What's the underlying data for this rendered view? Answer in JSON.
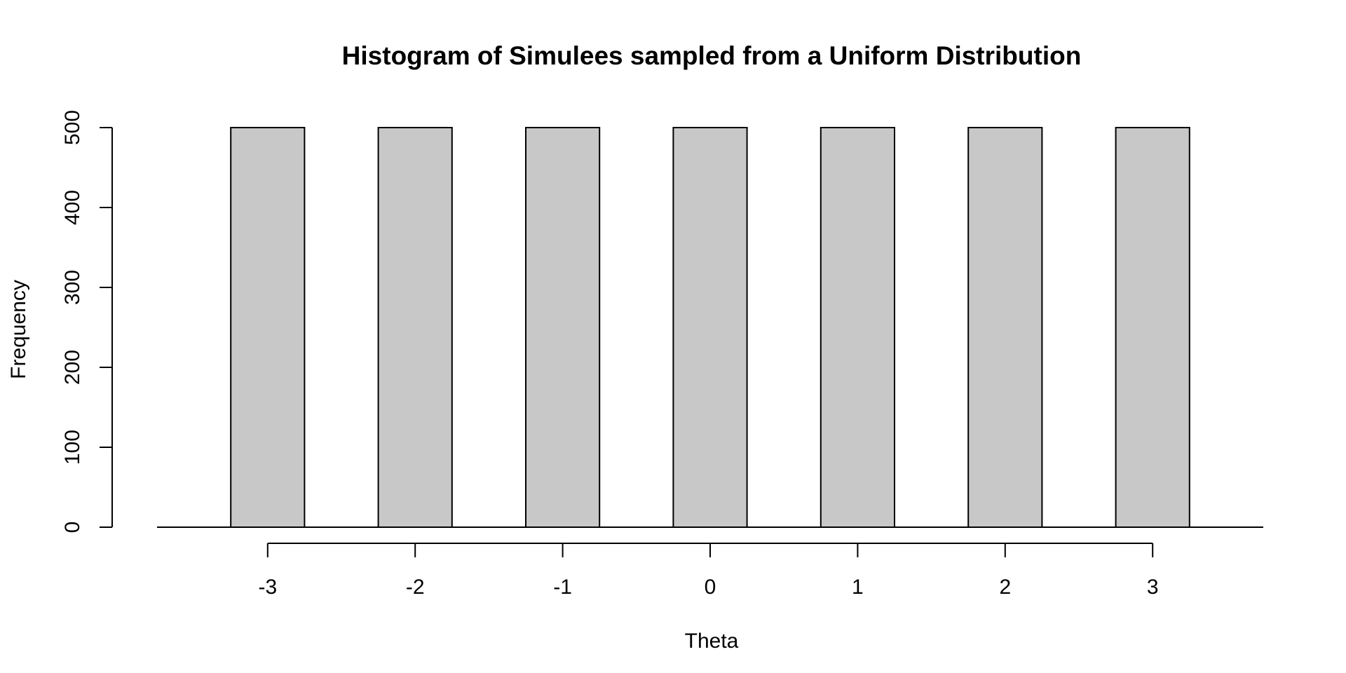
{
  "chart_data": {
    "type": "bar",
    "title": "Histogram of Simulees sampled from a Uniform Distribution",
    "xlabel": "Theta",
    "ylabel": "Frequency",
    "categories": [
      "-3",
      "-2",
      "-1",
      "0",
      "1",
      "2",
      "3"
    ],
    "x": [
      -3,
      -2,
      -1,
      0,
      1,
      2,
      3
    ],
    "values": [
      500,
      500,
      500,
      500,
      500,
      500,
      500
    ],
    "bar_halfwidth": 0.25,
    "xlim": [
      -3.75,
      3.75
    ],
    "ylim": [
      0,
      500
    ],
    "y_ticks": [
      0,
      100,
      200,
      300,
      400,
      500
    ],
    "x_ticks": [
      -3,
      -2,
      -1,
      0,
      1,
      2,
      3
    ],
    "bar_fill": "#c8c8c8",
    "bar_stroke": "#000000",
    "grid": false,
    "legend": "none"
  }
}
